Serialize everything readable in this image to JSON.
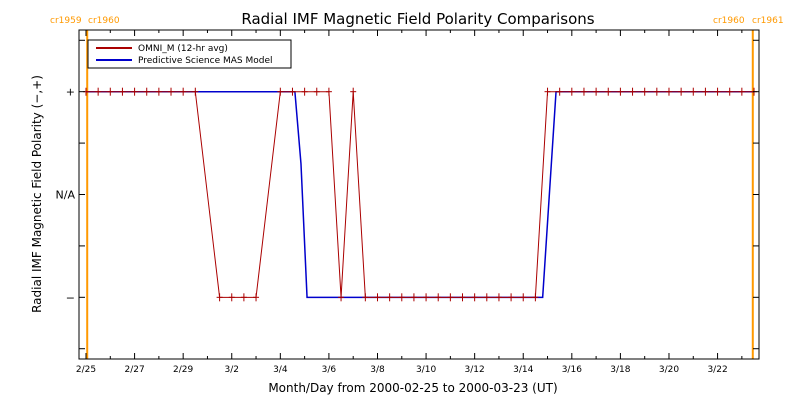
{
  "chart_data": {
    "type": "line",
    "title": "Radial IMF Magnetic Field Polarity Comparisons",
    "xlabel": "Month/Day from 2000-02-25 to 2000-03-23 (UT)",
    "ylabel": "Radial IMF Magnetic Field Polarity (−,+)",
    "xlim": [
      0,
      27.5
    ],
    "ylim": [
      -1.6,
      1.6
    ],
    "x_ticks": [
      {
        "day": 0,
        "label": "2/25"
      },
      {
        "day": 2,
        "label": "2/27"
      },
      {
        "day": 4,
        "label": "2/29"
      },
      {
        "day": 6,
        "label": "3/2"
      },
      {
        "day": 8,
        "label": "3/4"
      },
      {
        "day": 10,
        "label": "3/6"
      },
      {
        "day": 12,
        "label": "3/8"
      },
      {
        "day": 14,
        "label": "3/10"
      },
      {
        "day": 16,
        "label": "3/12"
      },
      {
        "day": 18,
        "label": "3/14"
      },
      {
        "day": 20,
        "label": "3/16"
      },
      {
        "day": 22,
        "label": "3/18"
      },
      {
        "day": 24,
        "label": "3/20"
      },
      {
        "day": 26,
        "label": "3/22"
      }
    ],
    "y_ticks": [
      {
        "value": 1,
        "label": "+"
      },
      {
        "value": 0,
        "label": "N/A"
      },
      {
        "value": -1,
        "label": "−"
      }
    ],
    "carrington_markers": [
      {
        "day": 0.05,
        "left_label": "cr1959",
        "right_label": "cr1960",
        "label_side": "left",
        "color": "#ff9900"
      },
      {
        "day": 27.45,
        "left_label": "cr1960",
        "right_label": "cr1961",
        "label_side": "right",
        "color": "#ff9900"
      }
    ],
    "legend": {
      "position": "top-left"
    },
    "series": [
      {
        "name": "OMNI_M (12-hr avg)",
        "color": "#aa0000",
        "markers": true,
        "x": [
          0,
          0.5,
          1,
          1.5,
          2,
          2.5,
          3,
          3.5,
          4,
          4.5,
          5,
          5.5,
          6,
          6.5,
          7,
          7.5,
          8,
          8.5,
          9,
          9.5,
          10,
          10.5,
          11,
          11.5,
          12,
          12.5,
          13,
          13.5,
          14,
          14.5,
          15,
          15.5,
          16,
          16.5,
          17,
          17.5,
          18,
          18.5,
          19,
          19.5,
          20,
          20.5,
          21,
          21.5,
          22,
          22.5,
          23,
          23.5,
          24,
          24.5,
          25,
          25.5,
          26,
          26.5,
          27,
          27.5
        ],
        "y": [
          1,
          1,
          1,
          1,
          1,
          1,
          1,
          1,
          1,
          1,
          0,
          -1,
          -1,
          -1,
          -1,
          0,
          1,
          1,
          1,
          1,
          1,
          -1,
          1,
          -1,
          -1,
          -1,
          -1,
          -1,
          -1,
          -1,
          -1,
          -1,
          -1,
          -1,
          -1,
          -1,
          -1,
          -1,
          1,
          1,
          1,
          1,
          1,
          1,
          1,
          1,
          1,
          1,
          1,
          1,
          1,
          1,
          1,
          1,
          1,
          1
        ]
      },
      {
        "name": "Predictive Science MAS Model",
        "color": "#0000cc",
        "markers": false,
        "x": [
          0,
          8.6,
          8.85,
          9.1,
          18.8,
          19.35,
          27.5
        ],
        "y": [
          1,
          1,
          0.3,
          -1,
          -1,
          1,
          1
        ]
      }
    ]
  }
}
